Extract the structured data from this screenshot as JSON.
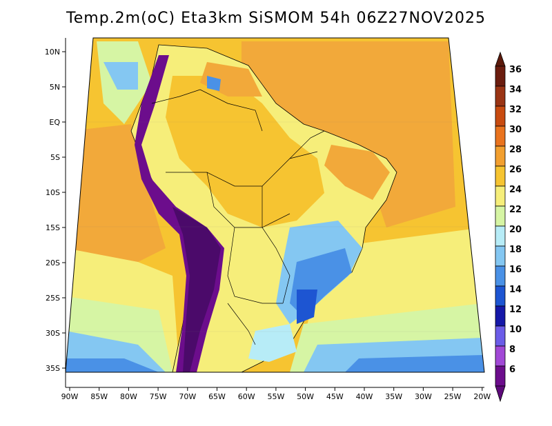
{
  "title": "Temp.2m(oC) Eta3km SiSMOM 54h 06Z27NOV2025",
  "lat_labels": [
    "10N",
    "5N",
    "EQ",
    "5S",
    "10S",
    "15S",
    "20S",
    "25S",
    "30S",
    "35S"
  ],
  "lon_labels": [
    "90W",
    "85W",
    "80W",
    "75W",
    "70W",
    "65W",
    "60W",
    "55W",
    "50W",
    "45W",
    "40W",
    "35W",
    "30W",
    "25W",
    "20W"
  ],
  "colorbar": {
    "labels": [
      "36",
      "34",
      "32",
      "30",
      "28",
      "26",
      "24",
      "22",
      "20",
      "18",
      "16",
      "14",
      "12",
      "10",
      "8",
      "6"
    ],
    "colors": [
      "#6b1d0f",
      "#9a3414",
      "#c84b10",
      "#e9731e",
      "#f29f2f",
      "#f6c431",
      "#f6ee7a",
      "#d6f5a4",
      "#b7ecf7",
      "#84c7f2",
      "#4a91e6",
      "#1d55d2",
      "#1518a8",
      "#6b5ce8",
      "#a148d6",
      "#6c0d8c"
    ],
    "min_arrow_color": "#5d0a7a",
    "max_arrow_color": "#5c1a0c"
  },
  "colors": {
    "ocean_warm": "#f2a93a",
    "ocean_mild": "#f6c431",
    "land_base": "#f6ee7a",
    "andes": "#6c0d8c",
    "south_cool": "#4a91e6",
    "cold_band": "#84c7f2",
    "outline": "#000000"
  }
}
